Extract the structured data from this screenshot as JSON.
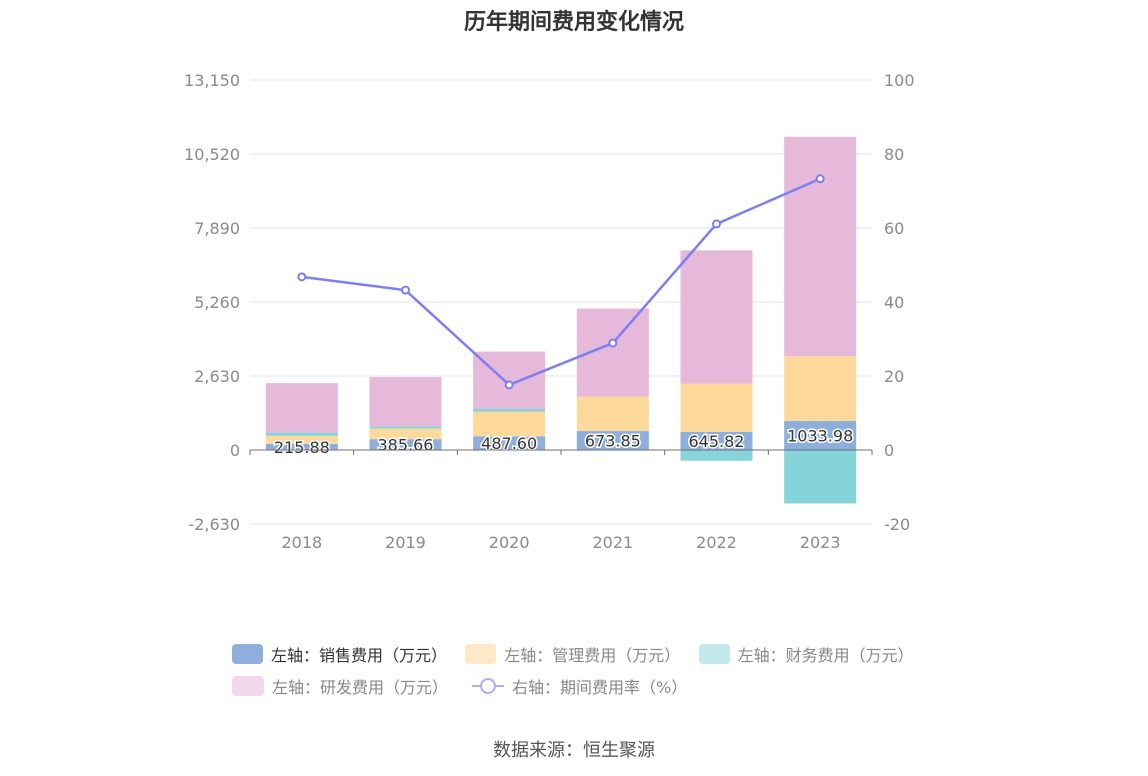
{
  "chart_data": {
    "type": "bar",
    "title": "历年期间费用变化情况",
    "categories": [
      "2018",
      "2019",
      "2020",
      "2021",
      "2022",
      "2023"
    ],
    "left_axis": {
      "min": -2630,
      "max": 13150,
      "ticks": [
        "13,150",
        "10,520",
        "7,890",
        "5,260",
        "2,630",
        "0",
        "-2,630"
      ]
    },
    "right_axis": {
      "min": -20,
      "max": 100,
      "ticks": [
        "100",
        "80",
        "60",
        "40",
        "20",
        "0",
        "-20"
      ]
    },
    "series": [
      {
        "name": "左轴：销售费用（万元）",
        "type": "bar",
        "stack": "cost",
        "axis": "left",
        "color": "#8eaedb",
        "values": [
          215.88,
          385.66,
          487.6,
          673.85,
          645.82,
          1033.98
        ],
        "labels": [
          "215.88",
          "385.66",
          "487.60",
          "673.85",
          "645.82",
          "1033.98"
        ]
      },
      {
        "name": "左轴：管理费用（万元）",
        "type": "bar",
        "stack": "cost",
        "axis": "left",
        "color": "#fdd99b",
        "values": [
          290,
          380,
          880,
          1230,
          1710,
          2300
        ]
      },
      {
        "name": "左轴：财务费用（万元）",
        "type": "bar",
        "stack": "cost",
        "axis": "left",
        "color": "#84d4d9",
        "values": [
          110,
          80,
          90,
          -20,
          -380,
          -1900
        ]
      },
      {
        "name": "左轴：研发费用（万元）",
        "type": "bar",
        "stack": "cost",
        "axis": "left",
        "color": "#e6b8da",
        "values": [
          1760,
          1750,
          2040,
          3120,
          4740,
          7800
        ]
      },
      {
        "name": "右轴：期间费用率（%）",
        "type": "line",
        "axis": "right",
        "color": "#7b7ff0",
        "values": [
          46.8,
          43.2,
          17.6,
          28.9,
          61.1,
          73.3
        ]
      }
    ],
    "grid": true,
    "legend_position": "bottom"
  },
  "legend": {
    "row1": [
      "左轴：销售费用（万元）",
      "左轴：管理费用（万元）",
      "左轴：财务费用（万元）"
    ],
    "row2": [
      "左轴：研发费用（万元）",
      "右轴：期间费用率（%）"
    ]
  },
  "colors": {
    "legend_sales": "#8eaedb",
    "legend_admin": "#fde8c8",
    "legend_finance": "#c2e8ea",
    "legend_rd": "#f2d8ec"
  },
  "source": "数据来源：恒生聚源"
}
